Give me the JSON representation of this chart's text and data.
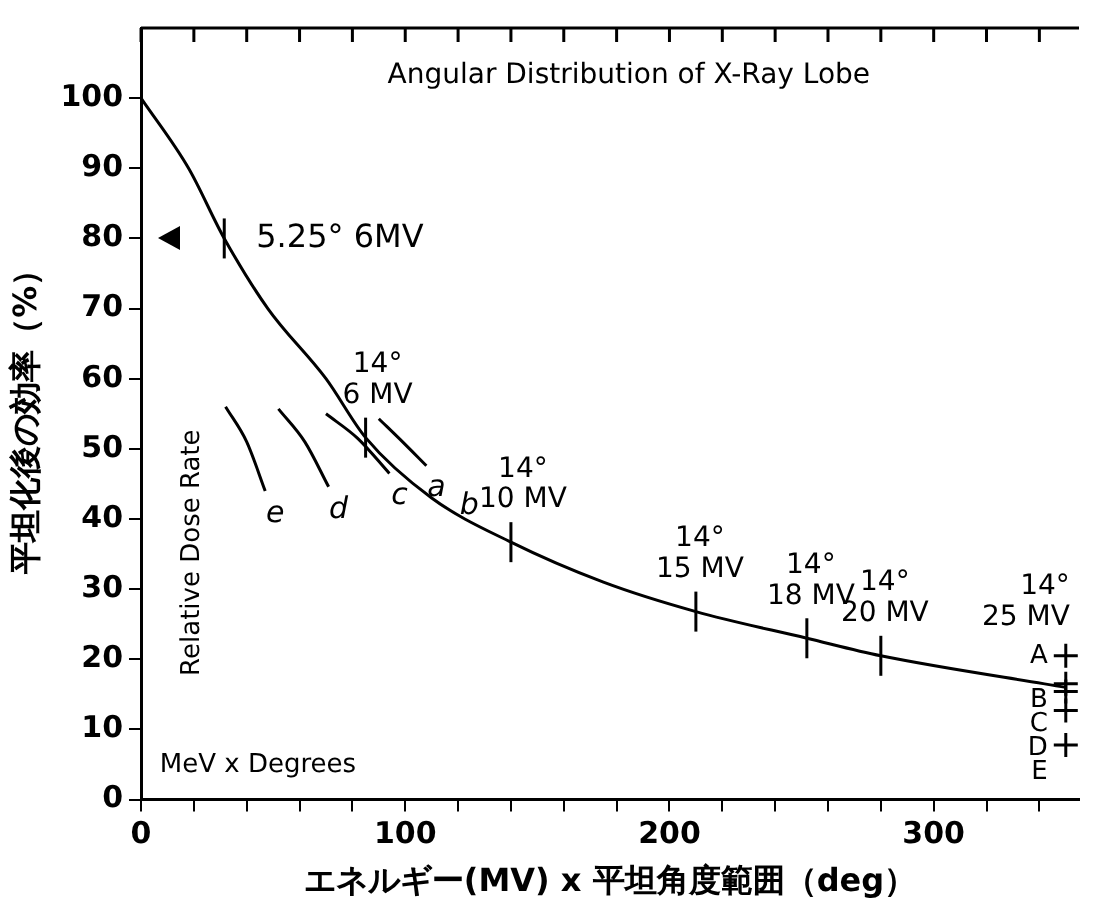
{
  "chart_data": {
    "type": "line",
    "title": "Angular Distribution of X-Ray Lobe",
    "xlabel": "エネルギー(MV) x 平坦角度範囲（deg）",
    "ylabel": "平坦化後の効率（%）",
    "xlim": [
      0,
      355
    ],
    "ylim": [
      0,
      110
    ],
    "xticks": [
      0,
      {
        "value": 20,
        "label": null
      },
      {
        "value": 40,
        "label": null
      },
      {
        "value": 60,
        "label": null
      },
      {
        "value": 80,
        "label": null
      },
      100,
      {
        "value": 120,
        "label": null
      },
      {
        "value": 140,
        "label": null
      },
      {
        "value": 160,
        "label": null
      },
      {
        "value": 180,
        "label": null
      },
      200,
      {
        "value": 220,
        "label": null
      },
      {
        "value": 240,
        "label": null
      },
      {
        "value": 260,
        "label": null
      },
      {
        "value": 280,
        "label": null
      },
      300,
      {
        "value": 320,
        "label": null
      },
      {
        "value": 340,
        "label": null
      }
    ],
    "yticks": [
      0,
      10,
      20,
      30,
      40,
      50,
      60,
      70,
      80,
      90,
      100
    ],
    "line_style": "solid",
    "series": [
      {
        "color": "#000000",
        "marker": "none",
        "x": [
          0,
          18,
          31.5,
          48,
          70,
          85,
          110,
          140,
          175,
          210,
          252,
          280,
          350
        ],
        "values": [
          100,
          90,
          80,
          70,
          60,
          51.6,
          43,
          36.7,
          31,
          26.8,
          23,
          20.5,
          16
        ]
      },
      {
        "name": "a",
        "color": "#000000",
        "marker": "none",
        "x": [
          90,
          99,
          108
        ],
        "values": [
          54.3,
          51,
          47.6
        ]
      },
      {
        "name": "c",
        "color": "#000000",
        "marker": "none",
        "x": [
          70,
          82,
          94
        ],
        "values": [
          55,
          51.5,
          46.5
        ]
      },
      {
        "name": "d",
        "color": "#000000",
        "marker": "none",
        "x": [
          52,
          62,
          71
        ],
        "values": [
          55.7,
          51,
          44.6
        ]
      },
      {
        "name": "e",
        "color": "#000000",
        "marker": "none",
        "x": [
          32,
          40,
          47
        ],
        "values": [
          56,
          51,
          44
        ]
      },
      {
        "type": "scatter",
        "color": "#000000",
        "marker": "cross",
        "x": [
          350,
          350,
          350,
          350,
          350
        ],
        "values": [
          20.5,
          16.5,
          15.4,
          12.7,
          7.8
        ],
        "value_labels": [
          "A",
          "B",
          "C",
          "D",
          "E"
        ]
      }
    ],
    "annotations": [
      "Relative Dose Rate",
      "MeV x Degrees",
      {
        "text": "5.25° 6MV",
        "x": 31.5,
        "y": 80
      },
      {
        "text": "14°\n6 MV",
        "x": 85,
        "y": 51.6
      },
      {
        "text": "14°\n10 MV",
        "x": 140,
        "y": 36.7
      },
      {
        "text": "14°\n15 MV",
        "x": 210,
        "y": 26.8
      },
      {
        "text": "14°\n18 MV",
        "x": 252,
        "y": 23
      },
      {
        "text": "14°\n20 MV",
        "x": 280,
        "y": 20.5
      },
      {
        "text": "14°\n25 MV",
        "x": 350,
        "y": 16
      },
      "b"
    ]
  }
}
